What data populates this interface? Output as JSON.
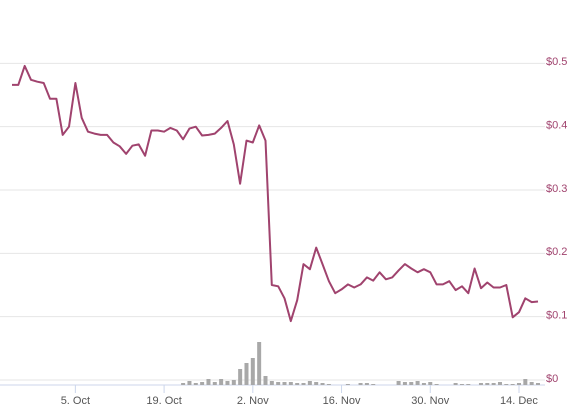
{
  "chart_data": {
    "type": "line",
    "categories": [
      null,
      null,
      null,
      null,
      null,
      null,
      null,
      null,
      null,
      null,
      "5. Oct",
      null,
      null,
      null,
      null,
      null,
      null,
      null,
      null,
      null,
      null,
      null,
      null,
      null,
      "19. Oct",
      null,
      null,
      null,
      null,
      null,
      null,
      null,
      null,
      null,
      null,
      null,
      null,
      null,
      "2. Nov",
      null,
      null,
      null,
      null,
      null,
      null,
      null,
      null,
      null,
      null,
      null,
      null,
      null,
      "16. Nov",
      null,
      null,
      null,
      null,
      null,
      null,
      null,
      null,
      null,
      null,
      null,
      null,
      null,
      "30. Nov",
      null,
      null,
      null,
      null,
      null,
      null,
      null,
      null,
      null,
      null,
      null,
      null,
      null,
      "14. Dec",
      null,
      null,
      null
    ],
    "series": [
      {
        "color": "#a0436e",
        "values": [
          0.466,
          0.466,
          0.496,
          0.474,
          0.471,
          0.469,
          0.444,
          0.444,
          0.387,
          0.4,
          0.469,
          0.414,
          0.392,
          0.389,
          0.387,
          0.387,
          0.375,
          0.369,
          0.357,
          0.37,
          0.372,
          0.354,
          0.394,
          0.394,
          0.392,
          0.398,
          0.394,
          0.38,
          0.397,
          0.4,
          0.386,
          0.387,
          0.389,
          0.398,
          0.409,
          0.372,
          0.31,
          0.378,
          0.375,
          0.402,
          0.378,
          0.15,
          0.148,
          0.129,
          0.093,
          0.126,
          0.183,
          0.175,
          0.209,
          0.183,
          0.156,
          0.137,
          0.143,
          0.151,
          0.146,
          0.151,
          0.162,
          0.157,
          0.17,
          0.159,
          0.162,
          0.173,
          0.183,
          0.176,
          0.17,
          0.175,
          0.17,
          0.151,
          0.151,
          0.156,
          0.142,
          0.148,
          0.137,
          0.176,
          0.145,
          0.154,
          0.146,
          0.146,
          0.15,
          0.099,
          0.107,
          0.129,
          0.123,
          0.124
        ]
      },
      {
        "type": "bar",
        "color": "#a8a8a8",
        "axis": "y2",
        "values": [
          0,
          0,
          0,
          0,
          0,
          0,
          0,
          0,
          0,
          0,
          0,
          0,
          0,
          0,
          0,
          0,
          0,
          0,
          0,
          0,
          0,
          0,
          0,
          0,
          0,
          0,
          0,
          2,
          4,
          2,
          3,
          6,
          3,
          6,
          4,
          5,
          16,
          22,
          27,
          43,
          9,
          4,
          3,
          3,
          3,
          2,
          2,
          4,
          3,
          2,
          1,
          0,
          0,
          1,
          0,
          2,
          2,
          1,
          0,
          0,
          0,
          4,
          3,
          3,
          4,
          2,
          3,
          1,
          0,
          0,
          2,
          1,
          1,
          0,
          2,
          2,
          2,
          3,
          1,
          1,
          2,
          6,
          3,
          2
        ]
      }
    ],
    "ylim": [
      0,
      0.6
    ],
    "yticks": [
      {
        "value": 0,
        "label": "$0"
      },
      {
        "value": 0.1,
        "label": "$0.1"
      },
      {
        "value": 0.2,
        "label": "$0.2"
      },
      {
        "value": 0.3,
        "label": "$0.3"
      },
      {
        "value": 0.4,
        "label": "$0.4"
      },
      {
        "value": 0.5,
        "label": "$0.5"
      }
    ],
    "y2lim": [
      0,
      100
    ],
    "grid": true
  }
}
